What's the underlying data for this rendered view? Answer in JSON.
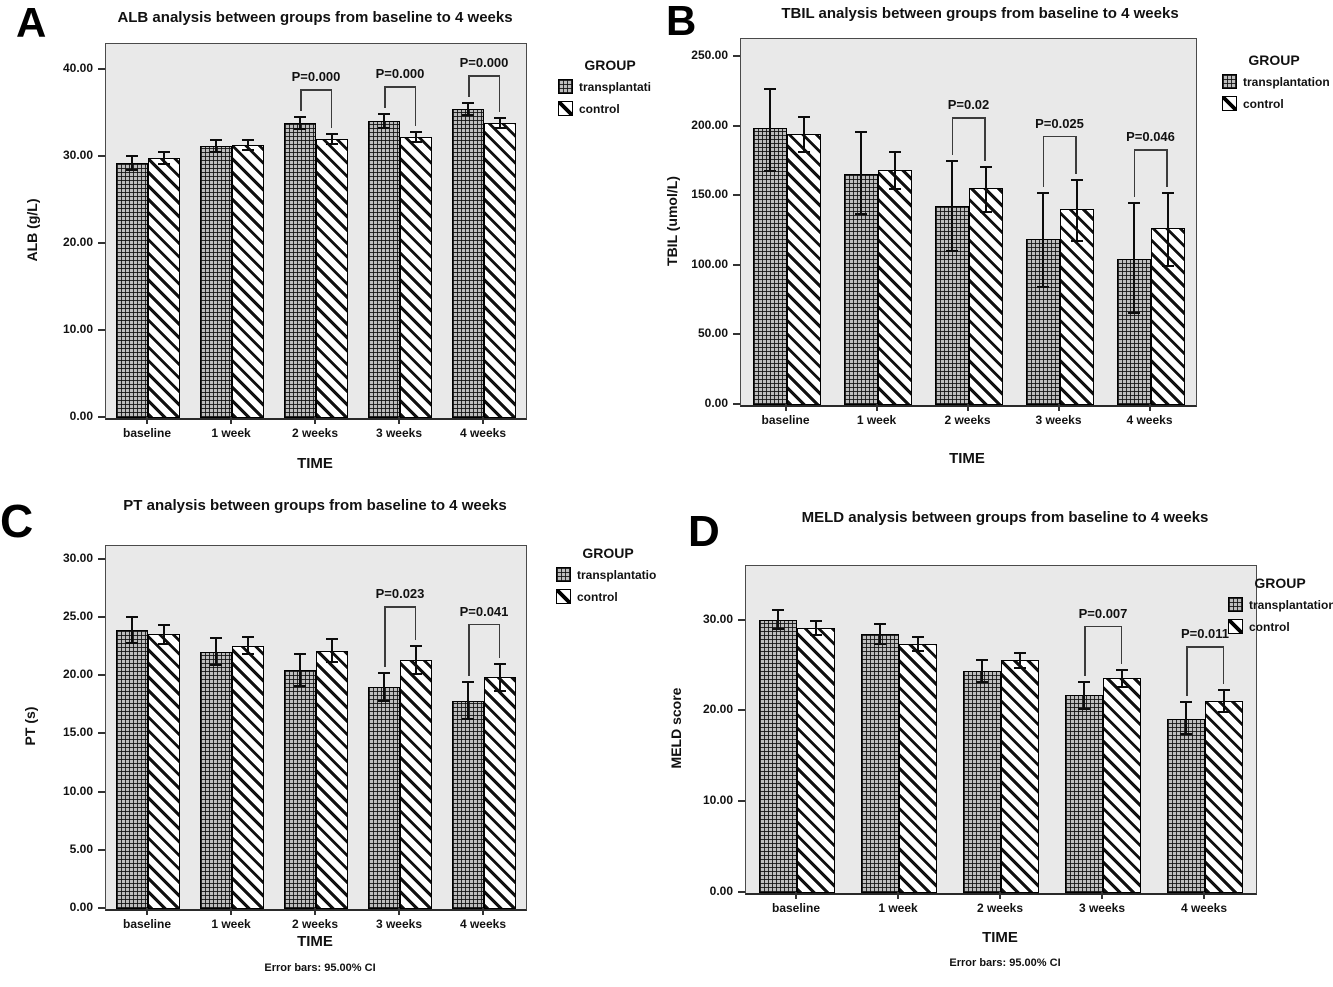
{
  "colors": {
    "page_bg": "#ffffff",
    "plot_bg": "#e9e9e9",
    "bar_outline": "#000000",
    "text": "#111111"
  },
  "chart_data": [
    {
      "id": "A",
      "letter": "A",
      "type": "bar",
      "title": "ALB analysis between groups from baseline to 4 weeks",
      "xlabel": "TIME",
      "ylabel": "ALB (g/L)",
      "ylim": [
        0,
        43
      ],
      "grid": false,
      "legend_position": "right",
      "legend_title": "GROUP",
      "yticks": [
        {
          "value": 0,
          "label": "0.00"
        },
        {
          "value": 10,
          "label": "10.00"
        },
        {
          "value": 20,
          "label": "20.00"
        },
        {
          "value": 30,
          "label": "30.00"
        },
        {
          "value": 40,
          "label": "40.00"
        }
      ],
      "categories": [
        "baseline",
        "1 week",
        "2 weeks",
        "3 weeks",
        "4 weeks"
      ],
      "series": [
        {
          "name": "transplantation",
          "legend_label": "transplantati",
          "pattern": "grid",
          "values": [
            29.3,
            31.3,
            33.9,
            34.1,
            35.5
          ],
          "ci_low": [
            28.5,
            30.6,
            33.2,
            33.3,
            34.8
          ],
          "ci_high": [
            30.1,
            32.0,
            34.6,
            34.9,
            36.2
          ]
        },
        {
          "name": "control",
          "legend_label": "control",
          "pattern": "diag",
          "values": [
            29.9,
            31.4,
            32.1,
            32.3,
            33.9
          ],
          "ci_low": [
            29.2,
            30.8,
            31.5,
            31.7,
            33.3
          ],
          "ci_high": [
            30.6,
            32.0,
            32.7,
            32.9,
            34.5
          ]
        }
      ],
      "annotations": [
        {
          "category": "2 weeks",
          "label": "P=0.000"
        },
        {
          "category": "3 weeks",
          "label": "P=0.000"
        },
        {
          "category": "4 weeks",
          "label": "P=0.000"
        }
      ]
    },
    {
      "id": "B",
      "letter": "B",
      "type": "bar",
      "title": "TBIL analysis between groups from baseline to 4 weeks",
      "xlabel": "TIME",
      "ylabel": "TBIL (umol/L)",
      "ylim": [
        0,
        263
      ],
      "grid": false,
      "legend_position": "right",
      "legend_title": "GROUP",
      "yticks": [
        {
          "value": 0,
          "label": "0.00"
        },
        {
          "value": 50,
          "label": "50.00"
        },
        {
          "value": 100,
          "label": "100.00"
        },
        {
          "value": 150,
          "label": "150.00"
        },
        {
          "value": 200,
          "label": "200.00"
        },
        {
          "value": 250,
          "label": "250.00"
        }
      ],
      "categories": [
        "baseline",
        "1 week",
        "2 weeks",
        "3 weeks",
        "4 weeks"
      ],
      "series": [
        {
          "name": "transplantation",
          "legend_label": "transplantation",
          "pattern": "grid",
          "values": [
            199,
            166,
            143,
            119,
            105
          ],
          "ci_low": [
            168,
            137,
            111,
            85,
            66
          ],
          "ci_high": [
            227,
            196,
            175,
            152,
            145
          ]
        },
        {
          "name": "control",
          "legend_label": "control",
          "pattern": "diag",
          "values": [
            195,
            169,
            156,
            141,
            127
          ],
          "ci_low": [
            182,
            155,
            139,
            118,
            100
          ],
          "ci_high": [
            207,
            182,
            171,
            162,
            152
          ]
        }
      ],
      "annotations": [
        {
          "category": "2 weeks",
          "label": "P=0.02"
        },
        {
          "category": "3 weeks",
          "label": "P=0.025"
        },
        {
          "category": "4 weeks",
          "label": "P=0.046"
        }
      ]
    },
    {
      "id": "C",
      "letter": "C",
      "type": "bar",
      "title": "PT analysis between groups from baseline to 4 weeks",
      "xlabel": "TIME",
      "ylabel": "PT (s)",
      "ylim": [
        0,
        31.2
      ],
      "grid": false,
      "legend_position": "right",
      "legend_title": "GROUP",
      "footer": "Error bars: 95.00% CI",
      "yticks": [
        {
          "value": 0,
          "label": "0.00"
        },
        {
          "value": 5,
          "label": "5.00"
        },
        {
          "value": 10,
          "label": "10.00"
        },
        {
          "value": 15,
          "label": "15.00"
        },
        {
          "value": 20,
          "label": "20.00"
        },
        {
          "value": 25,
          "label": "25.00"
        },
        {
          "value": 30,
          "label": "30.00"
        }
      ],
      "categories": [
        "baseline",
        "1 week",
        "2 weeks",
        "3 weeks",
        "4 weeks"
      ],
      "series": [
        {
          "name": "transplantation",
          "legend_label": "transplantatio",
          "pattern": "grid",
          "values": [
            24.0,
            22.1,
            20.5,
            19.1,
            17.9
          ],
          "ci_low": [
            22.9,
            21.0,
            19.2,
            17.9,
            16.3
          ],
          "ci_high": [
            25.1,
            23.3,
            21.9,
            20.3,
            19.5
          ]
        },
        {
          "name": "control",
          "legend_label": "control",
          "pattern": "diag",
          "values": [
            23.6,
            22.6,
            22.2,
            21.4,
            19.9
          ],
          "ci_low": [
            22.8,
            21.9,
            21.2,
            20.2,
            18.7
          ],
          "ci_high": [
            24.4,
            23.4,
            23.2,
            22.6,
            21.1
          ]
        }
      ],
      "annotations": [
        {
          "category": "3 weeks",
          "label": "P=0.023"
        },
        {
          "category": "4 weeks",
          "label": "P=0.041"
        }
      ]
    },
    {
      "id": "D",
      "letter": "D",
      "type": "bar",
      "title": "MELD analysis between groups from baseline to 4 weeks",
      "xlabel": "TIME",
      "ylabel": "MELD score",
      "ylim": [
        0,
        36
      ],
      "grid": false,
      "legend_position": "right",
      "legend_title": "GROUP",
      "footer": "Error bars: 95.00% CI",
      "yticks": [
        {
          "value": 0,
          "label": "0.00"
        },
        {
          "value": 10,
          "label": "10.00"
        },
        {
          "value": 20,
          "label": "20.00"
        },
        {
          "value": 30,
          "label": "30.00"
        }
      ],
      "categories": [
        "baseline",
        "1 week",
        "2 weeks",
        "3 weeks",
        "4 weeks"
      ],
      "series": [
        {
          "name": "transplantation",
          "legend_label": "transplantation",
          "pattern": "grid",
          "values": [
            30.1,
            28.5,
            24.4,
            21.8,
            19.2
          ],
          "ci_low": [
            29.1,
            27.4,
            23.2,
            20.3,
            17.5
          ],
          "ci_high": [
            31.2,
            29.6,
            25.7,
            23.2,
            21.0
          ]
        },
        {
          "name": "control",
          "legend_label": "control",
          "pattern": "diag",
          "values": [
            29.2,
            27.4,
            25.6,
            23.7,
            21.1
          ],
          "ci_low": [
            28.4,
            26.6,
            24.8,
            22.7,
            19.9
          ],
          "ci_high": [
            30.0,
            28.2,
            26.4,
            24.6,
            22.3
          ]
        }
      ],
      "annotations": [
        {
          "category": "3 weeks",
          "label": "P=0.007"
        },
        {
          "category": "4 weeks",
          "label": "P=0.011"
        }
      ]
    }
  ]
}
